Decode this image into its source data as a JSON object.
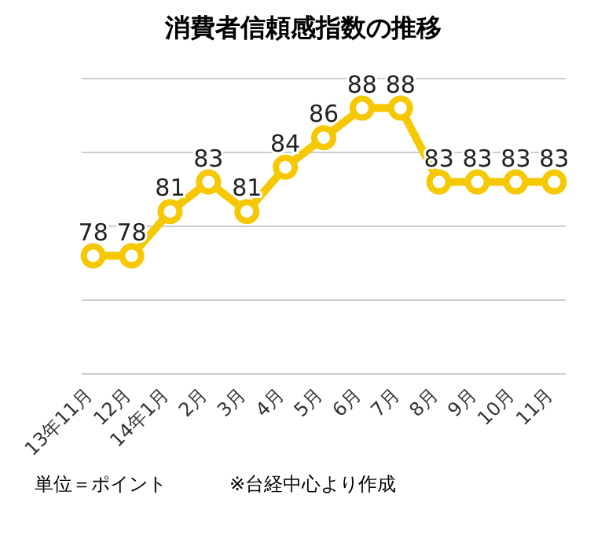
{
  "chart_data": {
    "type": "line",
    "title": "消費者信頼感指数の推移",
    "categories": [
      "13年11月",
      "12月",
      "14年1月",
      "2月",
      "3月",
      "4月",
      "5月",
      "6月",
      "7月",
      "8月",
      "9月",
      "10月",
      "11月"
    ],
    "series": [
      {
        "color": "#f5c800",
        "values": [
          78,
          78,
          81,
          83,
          81,
          84,
          86,
          88,
          88,
          83,
          83,
          83,
          83
        ]
      }
    ],
    "ylim": [
      70,
      90
    ],
    "yticks": [
      {
        "value": 70,
        "label": null
      },
      {
        "value": 75,
        "label": null
      },
      {
        "value": 80,
        "label": null
      },
      {
        "value": 85,
        "label": null
      },
      {
        "value": 90,
        "label": null
      }
    ],
    "tick_labels": "x",
    "grid": "y",
    "marker": "circle",
    "line_style": "solid",
    "data_labels": true,
    "legend": false,
    "annotations": [
      "単位＝ポイント",
      "※台経中心より作成"
    ]
  }
}
